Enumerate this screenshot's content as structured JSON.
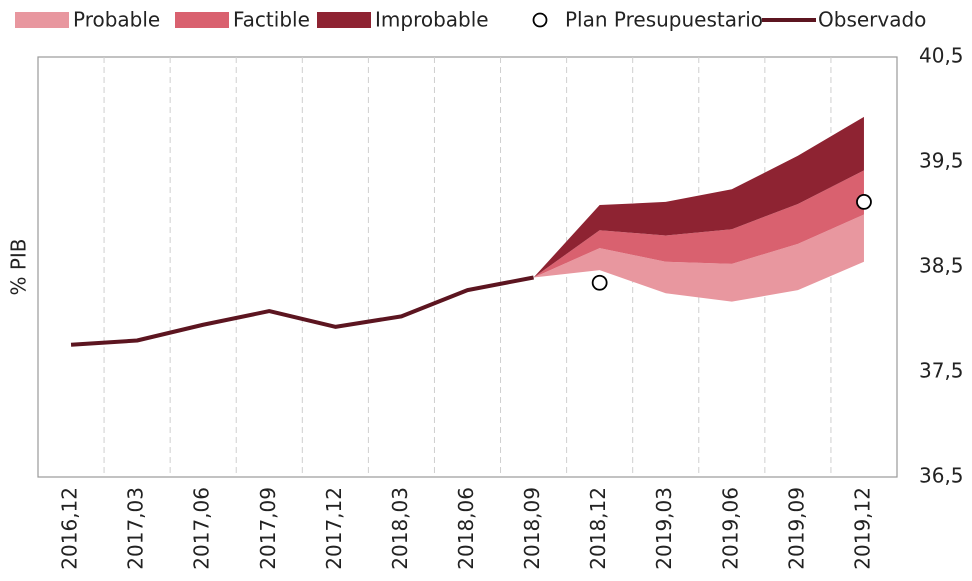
{
  "chart_data": {
    "type": "fan",
    "ylabel": "% PIB",
    "categories": [
      "2016,12",
      "2017,03",
      "2017,06",
      "2017,09",
      "2017,12",
      "2018,03",
      "2018,06",
      "2018,09",
      "2018,12",
      "2019,03",
      "2019,06",
      "2019,09",
      "2019,12"
    ],
    "ylim": [
      36.5,
      40.5
    ],
    "yticks": [
      {
        "value": 36.5,
        "label": "36,5"
      },
      {
        "value": 37.5,
        "label": "37,5"
      },
      {
        "value": 38.5,
        "label": "38,5"
      },
      {
        "value": 39.5,
        "label": "39,5"
      },
      {
        "value": 40.5,
        "label": "40,5"
      }
    ],
    "y_axis_side": "right",
    "grid": "x-dashed",
    "series": [
      {
        "name": "Probable",
        "kind": "band",
        "color": "#e8979f",
        "lower": [
          null,
          null,
          null,
          null,
          null,
          null,
          null,
          38.4,
          38.47,
          38.25,
          38.17,
          38.28,
          38.55
        ],
        "upper": [
          null,
          null,
          null,
          null,
          null,
          null,
          null,
          38.4,
          38.68,
          38.55,
          38.53,
          38.72,
          39.0
        ]
      },
      {
        "name": "Factible",
        "kind": "band",
        "color": "#d9616f",
        "lower": [
          null,
          null,
          null,
          null,
          null,
          null,
          null,
          38.4,
          38.68,
          38.55,
          38.53,
          38.72,
          39.0
        ],
        "upper": [
          null,
          null,
          null,
          null,
          null,
          null,
          null,
          38.4,
          38.85,
          38.8,
          38.86,
          39.1,
          39.42
        ]
      },
      {
        "name": "Improbable",
        "kind": "band",
        "color": "#8e2332",
        "lower": [
          null,
          null,
          null,
          null,
          null,
          null,
          null,
          38.4,
          38.85,
          38.8,
          38.86,
          39.1,
          39.42
        ],
        "upper": [
          null,
          null,
          null,
          null,
          null,
          null,
          null,
          38.4,
          39.09,
          39.12,
          39.24,
          39.56,
          39.93
        ]
      },
      {
        "name": "Plan Presupuestario",
        "kind": "scatter",
        "color": "#ffffff",
        "values": [
          null,
          null,
          null,
          null,
          null,
          null,
          null,
          null,
          38.35,
          null,
          null,
          null,
          39.12
        ]
      },
      {
        "name": "Observado",
        "kind": "line",
        "color": "#5c1520",
        "values": [
          37.76,
          37.8,
          37.95,
          38.08,
          37.93,
          38.03,
          38.28,
          38.4,
          null,
          null,
          null,
          null,
          null
        ]
      }
    ]
  }
}
